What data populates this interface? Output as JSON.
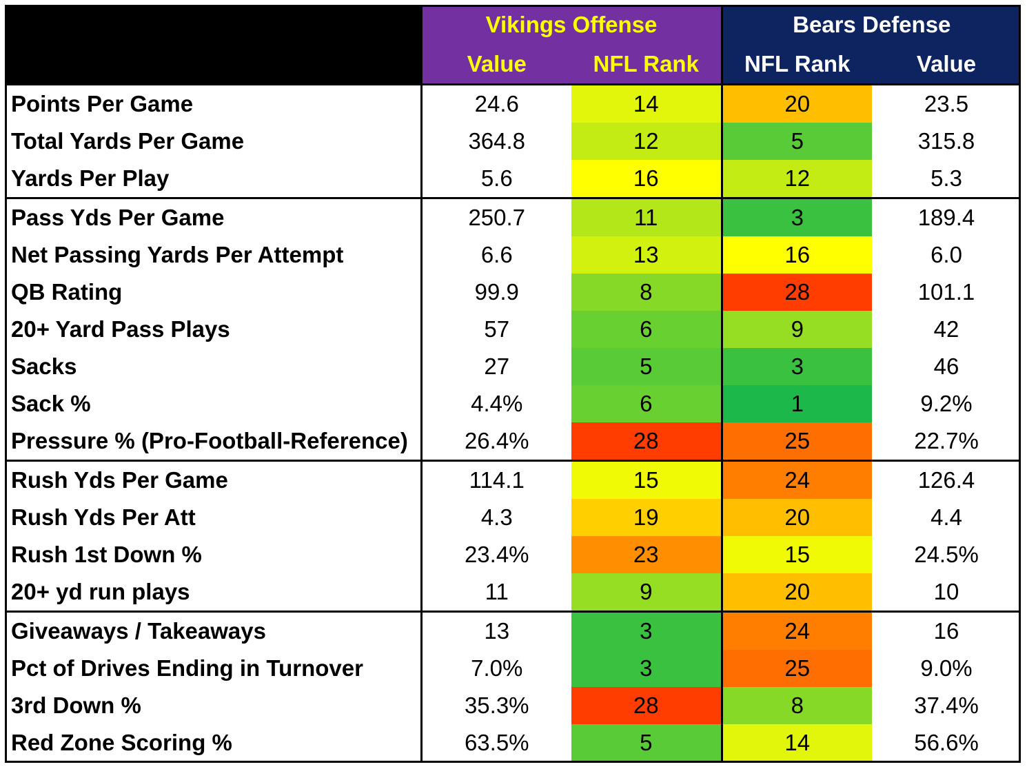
{
  "header": {
    "vikings_title": "Vikings Offense",
    "bears_title": "Bears Defense",
    "vikings_value_label": "Value",
    "vikings_rank_label": "NFL Rank",
    "bears_rank_label": "NFL Rank",
    "bears_value_label": "Value"
  },
  "colors": {
    "vikings_purple": "#7230A0",
    "vikings_gold": "#FFFF00",
    "bears_navy": "#0E2461",
    "rank_best": "#1CB84A",
    "rank_mid": "#FFFF00",
    "rank_worst": "#FF3D00"
  },
  "sections": [
    {
      "rows": [
        {
          "stat": "Points Per Game",
          "vik_value": "24.6",
          "vik_rank": "14",
          "bears_rank": "20",
          "bears_value": "23.5"
        },
        {
          "stat": "Total Yards Per Game",
          "vik_value": "364.8",
          "vik_rank": "12",
          "bears_rank": "5",
          "bears_value": "315.8"
        },
        {
          "stat": "Yards Per Play",
          "vik_value": "5.6",
          "vik_rank": "16",
          "bears_rank": "12",
          "bears_value": "5.3"
        }
      ]
    },
    {
      "rows": [
        {
          "stat": "Pass Yds Per Game",
          "vik_value": "250.7",
          "vik_rank": "11",
          "bears_rank": "3",
          "bears_value": "189.4"
        },
        {
          "stat": "Net Passing Yards Per Attempt",
          "vik_value": "6.6",
          "vik_rank": "13",
          "bears_rank": "16",
          "bears_value": "6.0"
        },
        {
          "stat": "QB Rating",
          "vik_value": "99.9",
          "vik_rank": "8",
          "bears_rank": "28",
          "bears_value": "101.1"
        },
        {
          "stat": "20+ Yard Pass Plays",
          "vik_value": "57",
          "vik_rank": "6",
          "bears_rank": "9",
          "bears_value": "42"
        },
        {
          "stat": "Sacks",
          "vik_value": "27",
          "vik_rank": "5",
          "bears_rank": "3",
          "bears_value": "46"
        },
        {
          "stat": "Sack %",
          "vik_value": "4.4%",
          "vik_rank": "6",
          "bears_rank": "1",
          "bears_value": "9.2%"
        },
        {
          "stat": "Pressure % (Pro-Football-Reference)",
          "vik_value": "26.4%",
          "vik_rank": "28",
          "bears_rank": "25",
          "bears_value": "22.7%"
        }
      ]
    },
    {
      "rows": [
        {
          "stat": "Rush Yds Per Game",
          "vik_value": "114.1",
          "vik_rank": "15",
          "bears_rank": "24",
          "bears_value": "126.4"
        },
        {
          "stat": "Rush Yds Per Att",
          "vik_value": "4.3",
          "vik_rank": "19",
          "bears_rank": "20",
          "bears_value": "4.4"
        },
        {
          "stat": "Rush 1st Down %",
          "vik_value": "23.4%",
          "vik_rank": "23",
          "bears_rank": "15",
          "bears_value": "24.5%"
        },
        {
          "stat": "20+ yd run plays",
          "vik_value": "11",
          "vik_rank": "9",
          "bears_rank": "20",
          "bears_value": "10"
        }
      ]
    },
    {
      "rows": [
        {
          "stat": "Giveaways / Takeaways",
          "vik_value": "13",
          "vik_rank": "3",
          "bears_rank": "24",
          "bears_value": "16"
        },
        {
          "stat": "Pct of Drives Ending in Turnover",
          "vik_value": "7.0%",
          "vik_rank": "3",
          "bears_rank": "25",
          "bears_value": "9.0%"
        },
        {
          "stat": "3rd Down %",
          "vik_value": "35.3%",
          "vik_rank": "28",
          "bears_rank": "8",
          "bears_value": "37.4%"
        },
        {
          "stat": "Red Zone Scoring %",
          "vik_value": "63.5%",
          "vik_rank": "5",
          "bears_rank": "14",
          "bears_value": "56.6%"
        }
      ]
    }
  ]
}
